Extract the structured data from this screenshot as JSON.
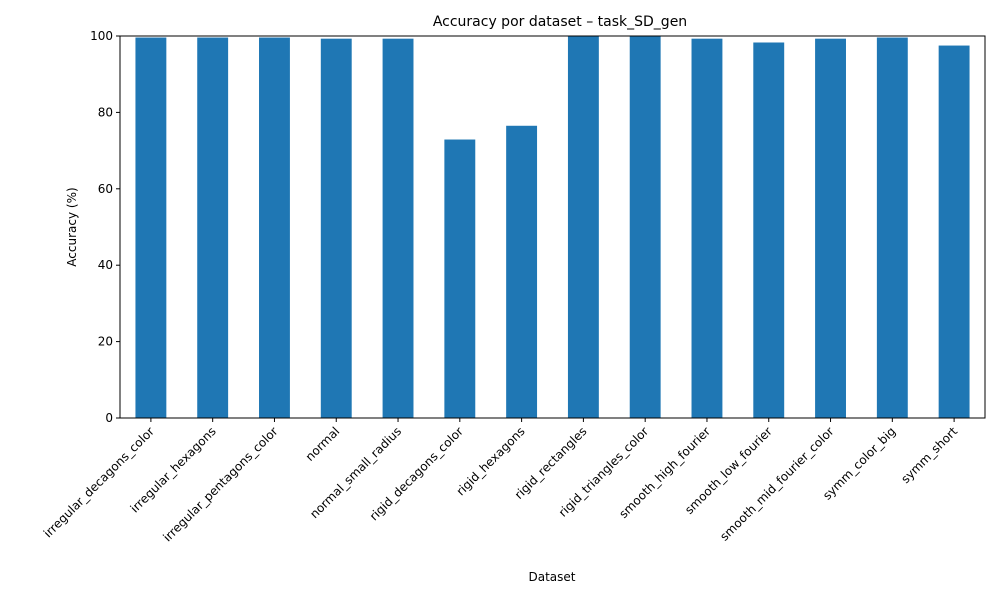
{
  "chart_data": {
    "type": "bar",
    "title": "Accuracy por dataset – task_SD_gen",
    "xlabel": "Dataset",
    "ylabel": "Accuracy (%)",
    "ylim": [
      0,
      100
    ],
    "yticks": [
      "0",
      "20",
      "40",
      "60",
      "80",
      "100"
    ],
    "grid": false,
    "bar_color": "#1f77b4",
    "categories": [
      "irregular_decagons_color",
      "irregular_hexagons",
      "irregular_pentagons_color",
      "normal",
      "normal_small_radius",
      "rigid_decagons_color",
      "rigid_hexagons",
      "rigid_rectangles",
      "rigid_triangles_color",
      "smooth_high_fourier",
      "smooth_low_fourier",
      "smooth_mid_fourier_color",
      "symm_color_big",
      "symm_short"
    ],
    "values": [
      99.6,
      99.6,
      99.6,
      99.3,
      99.3,
      72.9,
      76.5,
      100.0,
      100.0,
      99.3,
      98.3,
      99.3,
      99.6,
      97.5
    ]
  }
}
